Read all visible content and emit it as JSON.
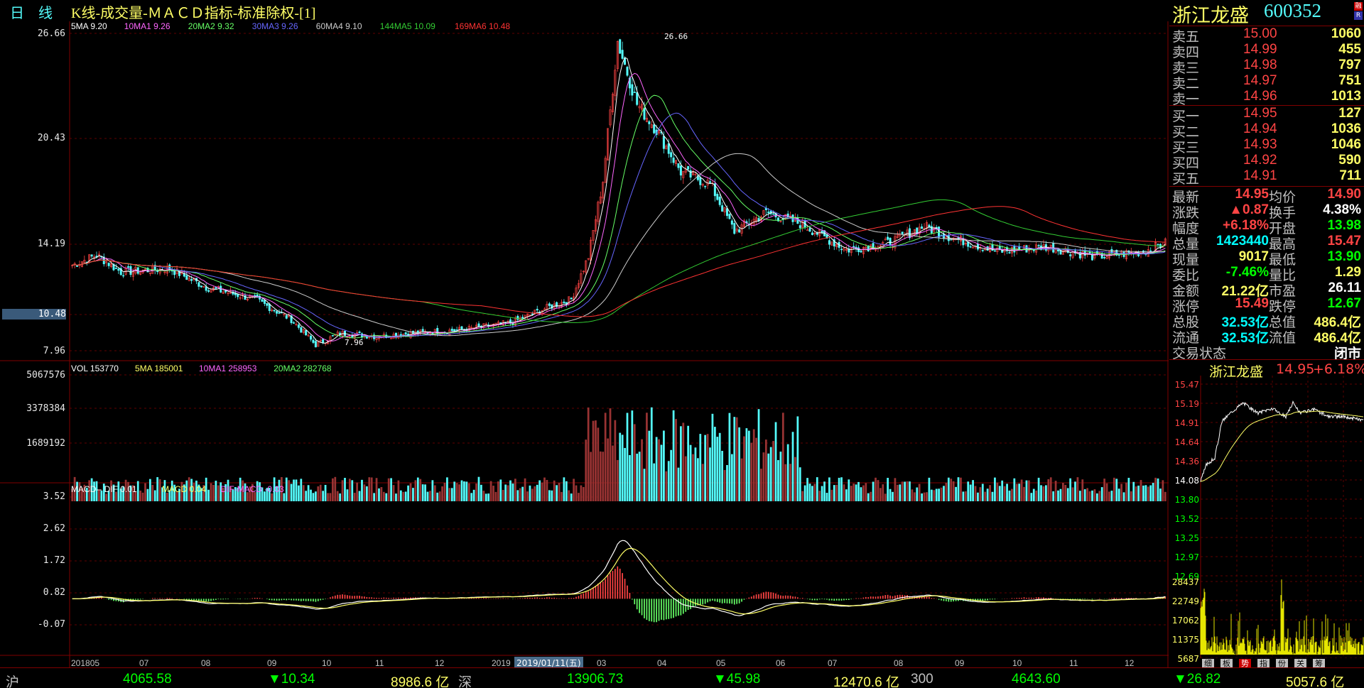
{
  "header": {
    "period": "日　线",
    "title": "K线-成交量-ＭＡＣＤ指标-标准除权-[1]",
    "stock_name": "浙江龙盛",
    "stock_code": "600352",
    "badge1": "融",
    "badge2": "R"
  },
  "kline": {
    "ma_labels": [
      {
        "text": "5MA 9.20",
        "color": "#ffffff"
      },
      {
        "text": "10MA1 9.26",
        "color": "#ff66ff"
      },
      {
        "text": "20MA2 9.32",
        "color": "#66ff66"
      },
      {
        "text": "30MA3 9.26",
        "color": "#6666ff"
      },
      {
        "text": "60MA4 9.10",
        "color": "#cccccc"
      },
      {
        "text": "144MA5 10.09",
        "color": "#33cc33"
      },
      {
        "text": "169MA6 10.48",
        "color": "#ff3333"
      }
    ],
    "y_labels": [
      "26.66",
      "20.43",
      "14.19",
      "10.48",
      "7.96"
    ],
    "high_label": "26.66",
    "low_label": "7.96"
  },
  "volume": {
    "labels": [
      {
        "text": "VOL 153770",
        "color": "#ffffff"
      },
      {
        "text": "5MA 185001",
        "color": "#ffff66"
      },
      {
        "text": "10MA1 258953",
        "color": "#ff66ff"
      },
      {
        "text": "20MA2 282768",
        "color": "#66ff66"
      }
    ],
    "y_labels": [
      "5067576",
      "3378384",
      "1689192"
    ]
  },
  "macd": {
    "labels": [
      {
        "text": "MACD-- DIF 0.01",
        "color": "#ffffff"
      },
      {
        "text": "MACD 0.04",
        "color": "#ffff66"
      },
      {
        "text": "DIF-MACD -0.03",
        "color": "#ff66ff"
      }
    ],
    "y_labels": [
      "3.52",
      "2.62",
      "1.72",
      "0.82",
      "-0.07"
    ]
  },
  "x_axis": [
    "201805",
    "07",
    "08",
    "09",
    "10",
    "11",
    "12",
    "2019",
    "03",
    "04",
    "05",
    "06",
    "07",
    "08",
    "09",
    "10",
    "11",
    "12"
  ],
  "cursor_date": "2019/01/11(五)",
  "order_book": {
    "sell": [
      {
        "label": "卖五",
        "price": "15.00",
        "vol": "1060"
      },
      {
        "label": "卖四",
        "price": "14.99",
        "vol": "455"
      },
      {
        "label": "卖三",
        "price": "14.98",
        "vol": "797"
      },
      {
        "label": "卖二",
        "price": "14.97",
        "vol": "751"
      },
      {
        "label": "卖一",
        "price": "14.96",
        "vol": "1013"
      }
    ],
    "buy": [
      {
        "label": "买一",
        "price": "14.95",
        "vol": "127"
      },
      {
        "label": "买二",
        "price": "14.94",
        "vol": "1036"
      },
      {
        "label": "买三",
        "price": "14.93",
        "vol": "1046"
      },
      {
        "label": "买四",
        "price": "14.92",
        "vol": "590"
      },
      {
        "label": "买五",
        "price": "14.91",
        "vol": "711"
      }
    ]
  },
  "stats": [
    {
      "l1": "最新",
      "v1": "14.95",
      "c1": "#ff4444",
      "l2": "均价",
      "v2": "14.90",
      "c2": "#ff4444"
    },
    {
      "l1": "涨跌",
      "v1": "▲0.87",
      "c1": "#ff4444",
      "l2": "换手",
      "v2": "4.38%",
      "c2": "#ffffff"
    },
    {
      "l1": "幅度",
      "v1": "+6.18%",
      "c1": "#ff4444",
      "l2": "开盘",
      "v2": "13.98",
      "c2": "#00ff00"
    },
    {
      "l1": "总量",
      "v1": "1423440",
      "c1": "#00ffff",
      "l2": "最高",
      "v2": "15.47",
      "c2": "#ff4444"
    },
    {
      "l1": "现量",
      "v1": "9017",
      "c1": "#ffff66",
      "l2": "最低",
      "v2": "13.90",
      "c2": "#00ff00"
    },
    {
      "l1": "委比",
      "v1": "-7.46%",
      "c1": "#00ff00",
      "l2": "量比",
      "v2": "1.29",
      "c2": "#ffff66"
    },
    {
      "l1": "金额",
      "v1": "21.22亿",
      "c1": "#ffff66",
      "l2": "市盈",
      "v2": "26.11",
      "c2": "#ffffff"
    },
    {
      "l1": "涨停",
      "v1": "15.49",
      "c1": "#ff4444",
      "l2": "跌停",
      "v2": "12.67",
      "c2": "#00ff00"
    },
    {
      "l1": "总股",
      "v1": "32.53亿",
      "c1": "#00ffff",
      "l2": "总值",
      "v2": "486.4亿",
      "c2": "#ffff66"
    },
    {
      "l1": "流通",
      "v1": "32.53亿",
      "c1": "#00ffff",
      "l2": "流值",
      "v2": "486.4亿",
      "c2": "#ffff66"
    }
  ],
  "trade_status": {
    "label": "交易状态",
    "value": "闭市"
  },
  "intraday": {
    "name": "浙江龙盛",
    "price": "14.95",
    "change": "+6.18%",
    "price_labels": [
      "15.47",
      "15.19",
      "14.91",
      "14.64",
      "14.36",
      "14.08",
      "13.80",
      "13.52",
      "13.25",
      "12.97",
      "12.69"
    ],
    "vol_labels": [
      "28437",
      "22749",
      "17062",
      "11375",
      "5687"
    ]
  },
  "right_tabs": [
    "细",
    "板",
    "势",
    "指",
    "份",
    "关",
    "筹"
  ],
  "bottom_bar": {
    "sh_label": "沪",
    "sh_index": "4065.58",
    "sh_change": "▼10.34",
    "sh_amount": "8986.6 亿",
    "sz_label": "深",
    "sz_index": "13906.73",
    "sz_change": "▼45.98",
    "sz_amount": "12470.6 亿",
    "cy_label": "300",
    "cy_index": "4643.60",
    "cy_change": "▼26.82",
    "cy_amount": "5057.6 亿"
  },
  "colors": {
    "up": "#ff4444",
    "down": "#54fcfc",
    "grid": "#800000",
    "text": "#c0c0c0"
  }
}
